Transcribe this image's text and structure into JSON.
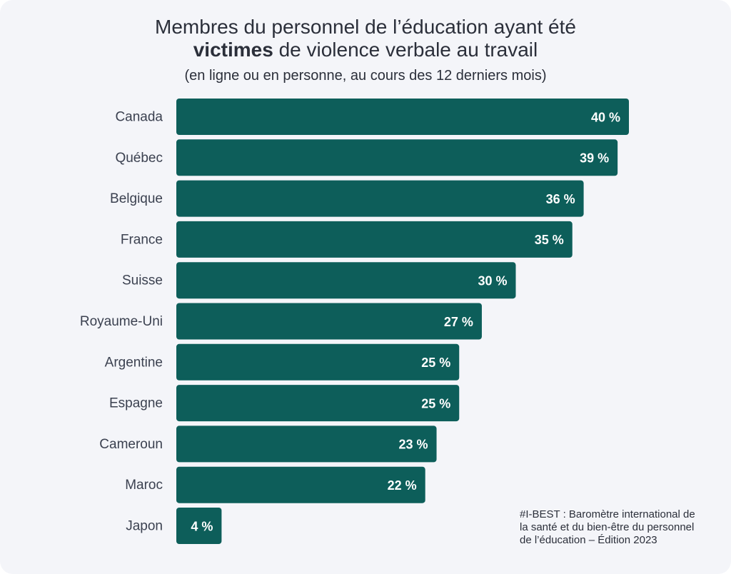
{
  "header": {
    "title_line1": "Membres du personnel de l’éducation ayant été",
    "title_line2_bold": "victimes",
    "title_line2_rest": " de violence verbale au travail",
    "subtitle": "(en ligne ou en personne, au cours des 12 derniers mois)"
  },
  "source": {
    "line1": "#I-BEST : Baromètre international de",
    "line2": "la santé et du bien-être du personnel",
    "line3": "de l’éducation – Édition 2023"
  },
  "colors": {
    "bar": "#0d5e5a",
    "background": "#f4f5f9"
  },
  "chart_data": {
    "type": "bar",
    "orientation": "horizontal",
    "categories": [
      "Canada",
      "Québec",
      "Belgique",
      "France",
      "Suisse",
      "Royaume-Uni",
      "Argentine",
      "Espagne",
      "Cameroun",
      "Maroc",
      "Japon"
    ],
    "values": [
      40,
      39,
      36,
      35,
      30,
      27,
      25,
      25,
      23,
      22,
      4
    ],
    "value_labels": [
      "40 %",
      "39 %",
      "36 %",
      "35 %",
      "30 %",
      "27 %",
      "25 %",
      "25 %",
      "23 %",
      "22 %",
      "4 %"
    ],
    "unit": "%",
    "title": "Membres du personnel de l’éducation ayant été victimes de violence verbale au travail",
    "subtitle": "(en ligne ou en personne, au cours des 12 derniers mois)",
    "xlim": [
      0,
      40
    ],
    "grid": false,
    "legend": "none"
  }
}
